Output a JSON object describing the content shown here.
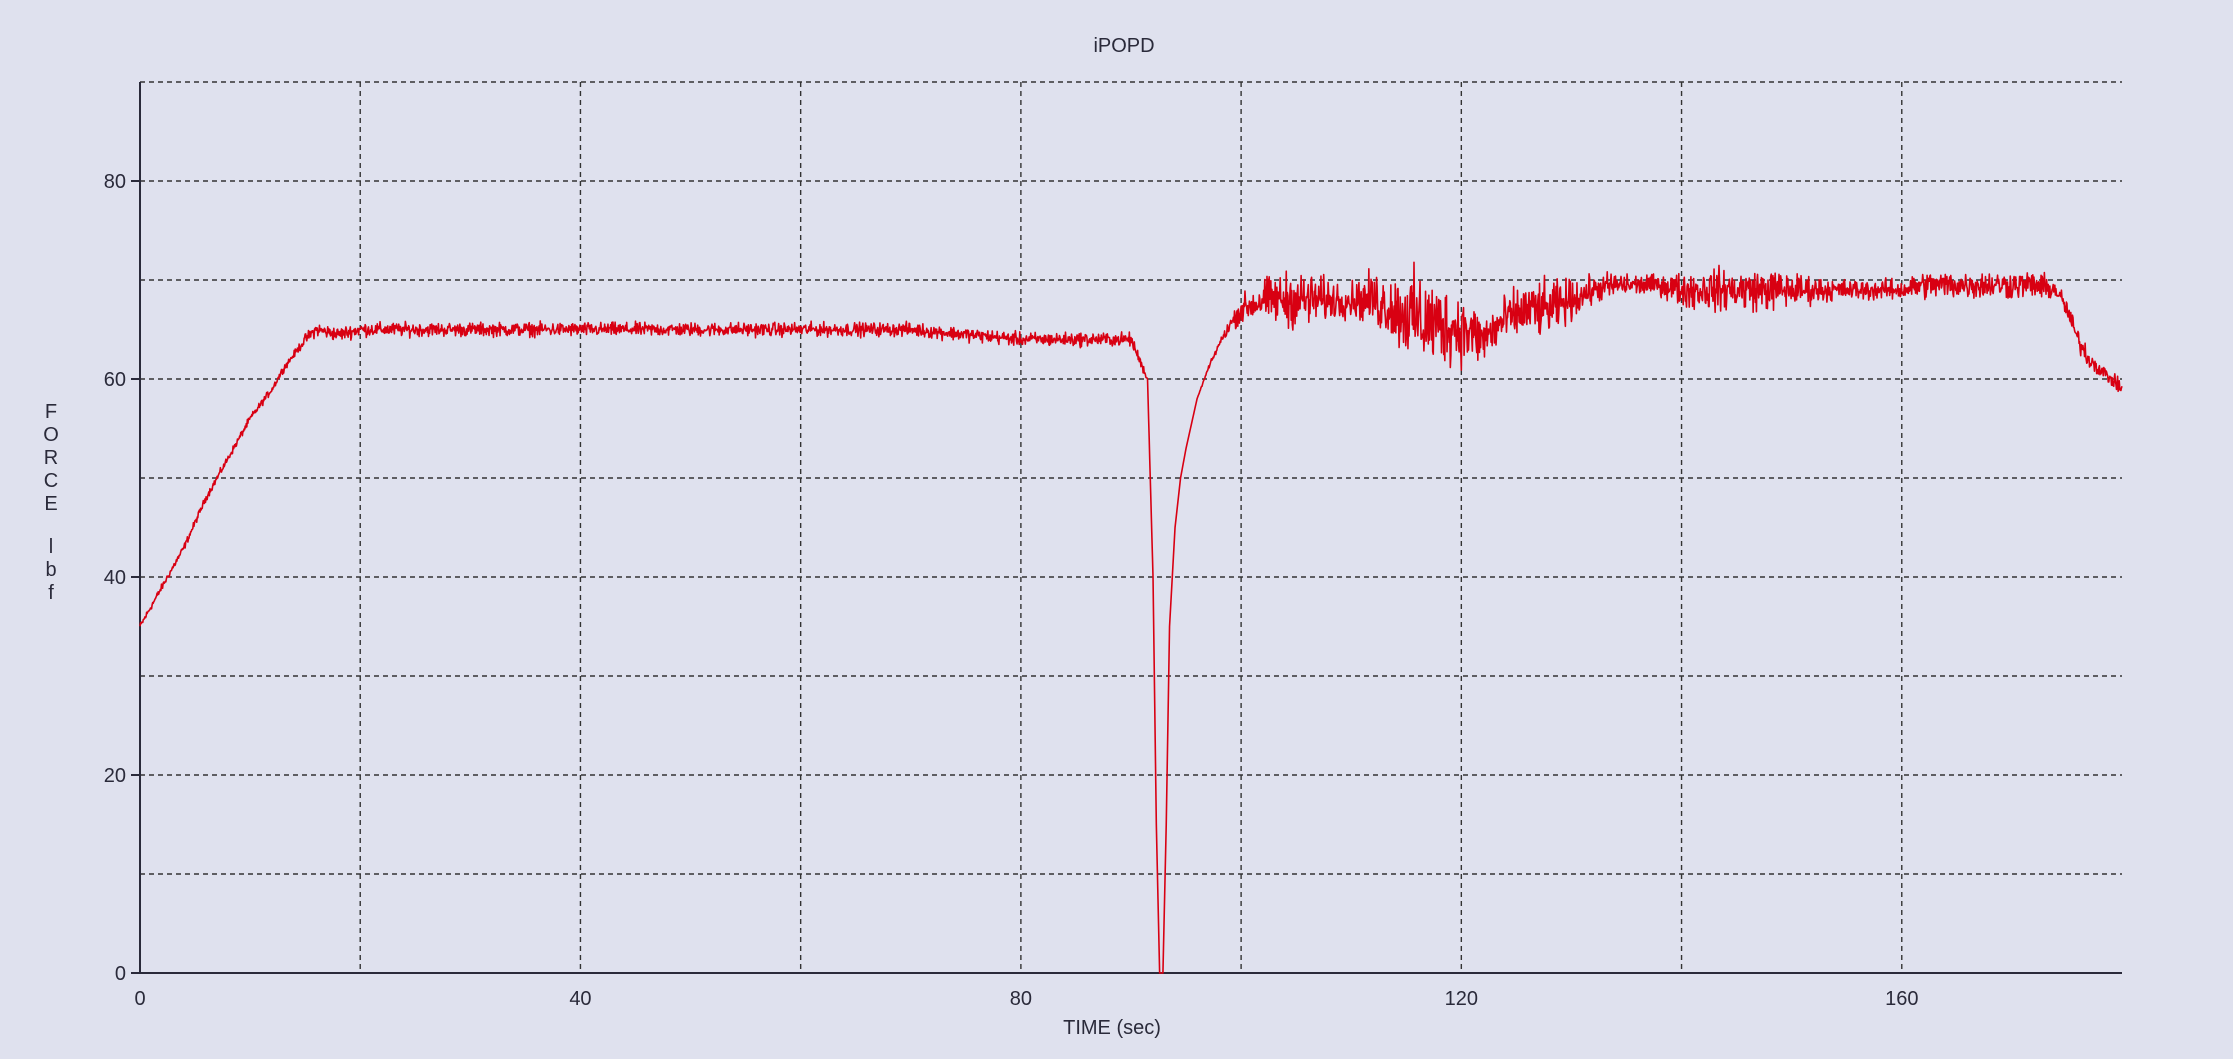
{
  "chart_data": {
    "type": "line",
    "title": "iPOPD",
    "xlabel": "TIME (sec)",
    "ylabel": "FORCE lbf",
    "ylabel_letters": [
      "F",
      "O",
      "R",
      "C",
      "E",
      "",
      "l",
      "b",
      "f"
    ],
    "xlim": [
      0,
      180
    ],
    "ylim": [
      0,
      90
    ],
    "xticks": [
      0,
      40,
      80,
      120,
      160
    ],
    "yticks": [
      0,
      20,
      40,
      60,
      80
    ],
    "x_grid": [
      20,
      40,
      60,
      80,
      100,
      120,
      140,
      160
    ],
    "y_grid": [
      10,
      20,
      30,
      40,
      50,
      60,
      70,
      80,
      90
    ],
    "grid": true,
    "line_color": "#d80012",
    "series": [
      {
        "x": [
          0,
          1,
          2,
          3,
          4,
          5,
          6,
          7,
          8,
          9,
          10,
          11,
          12,
          13,
          14,
          15,
          16,
          18,
          20,
          25,
          30,
          35,
          40,
          45,
          50,
          55,
          60,
          65,
          70,
          75,
          80,
          85,
          88,
          90,
          91.5,
          92,
          92.3,
          92.6,
          92.9,
          93.2,
          93.5,
          94,
          94.5,
          95,
          95.5,
          96,
          97,
          98,
          99,
          100,
          102,
          104,
          106,
          108,
          110,
          112,
          114,
          116,
          118,
          120,
          122,
          124,
          126,
          128,
          130,
          132,
          134,
          136,
          138,
          140,
          142,
          144,
          146,
          148,
          150,
          152,
          154,
          156,
          158,
          160,
          162,
          164,
          166,
          168,
          170,
          172,
          174,
          175,
          176,
          177,
          178,
          179,
          180
        ],
        "y": [
          35,
          37,
          39,
          41,
          43,
          45.5,
          48,
          50,
          52,
          54,
          56,
          57.5,
          59,
          61,
          62.5,
          64,
          65,
          64.5,
          65,
          65,
          65,
          65,
          65,
          65,
          65,
          65,
          65,
          65,
          65,
          64.5,
          64,
          64,
          64,
          64,
          60,
          40,
          15,
          0,
          0,
          15,
          35,
          45,
          50,
          53,
          55.5,
          58,
          61,
          63.5,
          65.5,
          67,
          68,
          68,
          68,
          68,
          68,
          68,
          67,
          66,
          65.5,
          65,
          64,
          66,
          67,
          67,
          68,
          69,
          69.5,
          69.5,
          69.5,
          69,
          69,
          69,
          69,
          69,
          69,
          69,
          69,
          69,
          69,
          69,
          69.5,
          69.5,
          69.5,
          69.5,
          69.5,
          69.5,
          69,
          67,
          64,
          62,
          61,
          60,
          59
        ],
        "noise": [
          0.5,
          0.5,
          0.5,
          0.5,
          0.5,
          0.5,
          0.5,
          0.5,
          0.5,
          0.5,
          0.5,
          0.5,
          0.5,
          0.5,
          0.5,
          0.8,
          1,
          1,
          1,
          1,
          1,
          1,
          1,
          1,
          1,
          1,
          1,
          1,
          1,
          1,
          1,
          1,
          1,
          1,
          0.5,
          0,
          0,
          0,
          0,
          0,
          0,
          0,
          0,
          0,
          0,
          0,
          0.3,
          0.5,
          1,
          2,
          3,
          4,
          4,
          3,
          2.5,
          4,
          5,
          7,
          6,
          5,
          4,
          3.5,
          4,
          4,
          3,
          2,
          2,
          1.5,
          1.5,
          2.5,
          3,
          3,
          3,
          3,
          2.5,
          2,
          1.5,
          1.5,
          1.5,
          1.5,
          2,
          2,
          2,
          2,
          2,
          2,
          1.5,
          1.5,
          1.5,
          1.5,
          1,
          1,
          1
        ]
      }
    ]
  }
}
